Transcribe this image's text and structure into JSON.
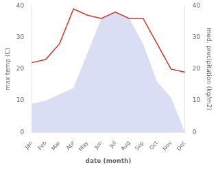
{
  "chart_data": {
    "type": "line",
    "xlabel": "date (month)",
    "ylabel": "max temp (C)",
    "y2label": "med. precipitation (kg/m2)",
    "categories": [
      "Jan",
      "Feb",
      "Mar",
      "Apr",
      "May",
      "Jun",
      "Jul",
      "Aug",
      "Sep",
      "Oct",
      "Nov",
      "Dec"
    ],
    "series": [
      {
        "type": "area",
        "color": "#c5cdf0",
        "values": [
          9,
          10,
          12,
          14,
          25,
          36,
          38,
          36,
          28,
          16,
          11,
          0
        ]
      },
      {
        "type": "line",
        "color": "#c0392b",
        "values": [
          22,
          23,
          28,
          39,
          37,
          36,
          38,
          36,
          36,
          28,
          20,
          19
        ]
      }
    ],
    "ylim": [
      0,
      40
    ],
    "yticks": [
      0,
      10,
      20,
      30,
      40
    ],
    "y2lim": [
      0,
      40
    ],
    "y2ticks": [
      0,
      10,
      20,
      30,
      40
    ],
    "grid": false
  }
}
